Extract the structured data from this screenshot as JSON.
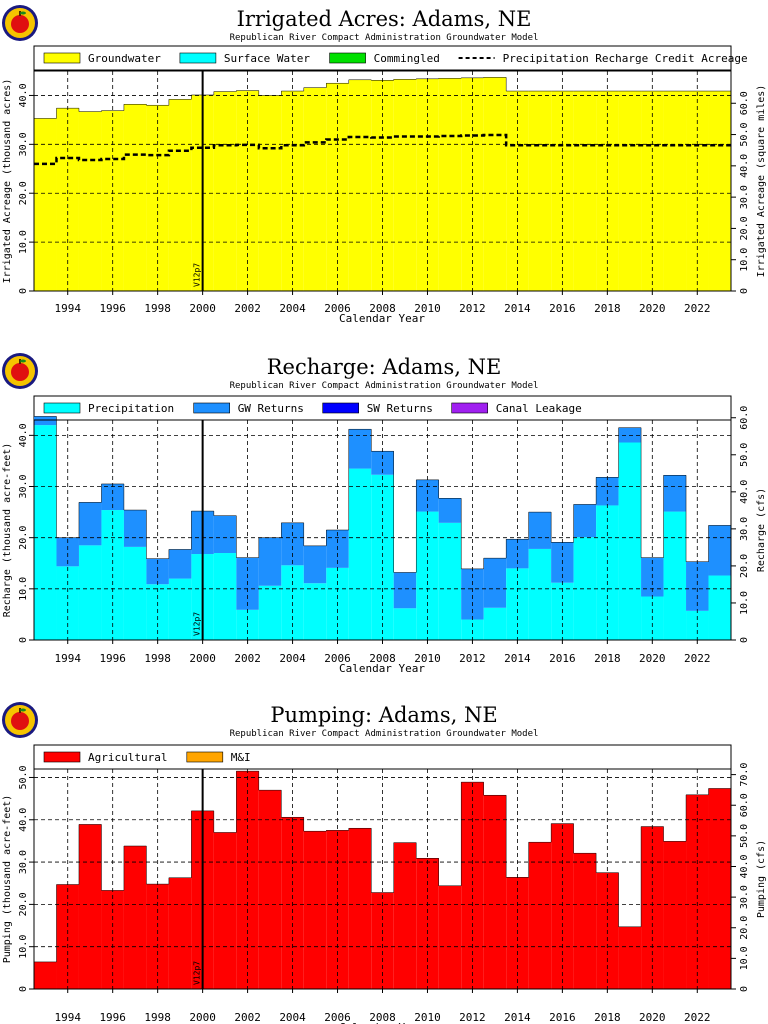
{
  "colors": {
    "groundwater": "#ffff00",
    "surface_water": "#00ffff",
    "commingled": "#00e000",
    "precipitation": "#00ffff",
    "gw_returns": "#1e90ff",
    "sw_returns": "#0000ff",
    "canal_leakage": "#a020f0",
    "agricultural": "#ff0000",
    "mi": "#ffa500",
    "logo_rim": "#1a1a80",
    "logo_fill": "#f5c400",
    "logo_apple": "#e01010"
  },
  "chart_data": [
    {
      "type": "bar",
      "title": "Irrigated Acres: Adams, NE",
      "subtitle": "Republican River Compact Administration Groundwater Model",
      "xlabel": "Calendar Year",
      "ylabel": "Irrigated Acreage (thousand acres)",
      "ylabel_right": "Irrigated Acreage (square miles)",
      "marker_label": "V12p7",
      "marker_year": 2000.5,
      "legend_placement": "top",
      "grid": true,
      "xlim": [
        1993,
        2024
      ],
      "ylim": [
        0,
        45
      ],
      "yticks": [
        0,
        10,
        20,
        30,
        40
      ],
      "ytick_labels": [
        "0",
        "10.0",
        "20.0",
        "30.0",
        "40.0"
      ],
      "ylim_right": [
        0,
        70.31
      ],
      "yticks_right": [
        0,
        10,
        20,
        30,
        40,
        50,
        60
      ],
      "ytick_labels_right": [
        "0",
        "10.0",
        "20.0",
        "30.0",
        "40.0",
        "50.0",
        "60.0"
      ],
      "x_ticks": [
        1994,
        1996,
        1998,
        2000,
        2002,
        2004,
        2006,
        2008,
        2010,
        2012,
        2014,
        2016,
        2018,
        2020,
        2022
      ],
      "x_tick_labels": [
        "1994",
        "1996",
        "1998",
        "2000",
        "2002",
        "2004",
        "2006",
        "2008",
        "2010",
        "2012",
        "2014",
        "2016",
        "2018",
        "2020",
        "2022"
      ],
      "x": [
        1993,
        1994,
        1995,
        1996,
        1997,
        1998,
        1999,
        2000,
        2001,
        2002,
        2003,
        2004,
        2005,
        2006,
        2007,
        2008,
        2009,
        2010,
        2011,
        2012,
        2013,
        2014,
        2015,
        2016,
        2017,
        2018,
        2019,
        2020,
        2021,
        2022,
        2023
      ],
      "series": [
        {
          "name": "Groundwater",
          "color": "#ffff00",
          "values": [
            35.3,
            37.4,
            36.7,
            36.9,
            38.2,
            38.0,
            39.2,
            40.1,
            40.8,
            41.0,
            40.0,
            40.9,
            41.6,
            42.5,
            43.2,
            43.1,
            43.3,
            43.4,
            43.5,
            43.6,
            43.7,
            40.9,
            40.9,
            40.9,
            40.9,
            40.9,
            40.9,
            40.9,
            40.9,
            40.9,
            40.9
          ]
        },
        {
          "name": "Surface Water",
          "color": "#00ffff",
          "values": [
            0,
            0,
            0,
            0,
            0,
            0,
            0,
            0,
            0,
            0,
            0,
            0,
            0,
            0,
            0,
            0,
            0,
            0,
            0,
            0,
            0,
            0,
            0,
            0,
            0,
            0,
            0,
            0,
            0,
            0,
            0
          ]
        },
        {
          "name": "Commingled",
          "color": "#00e000",
          "values": [
            0,
            0,
            0,
            0,
            0,
            0,
            0,
            0,
            0,
            0,
            0,
            0,
            0,
            0,
            0,
            0,
            0,
            0,
            0,
            0,
            0,
            0,
            0,
            0,
            0,
            0,
            0,
            0,
            0,
            0,
            0
          ]
        }
      ],
      "line_series": {
        "name": "Precipitation Recharge Credit Acreage",
        "style": "dashed",
        "values": [
          26.0,
          27.2,
          26.8,
          27.0,
          27.9,
          27.8,
          28.7,
          29.3,
          29.8,
          29.9,
          29.2,
          29.8,
          30.4,
          31.0,
          31.5,
          31.4,
          31.6,
          31.6,
          31.7,
          31.8,
          31.9,
          29.8,
          29.8,
          29.8,
          29.8,
          29.8,
          29.8,
          29.8,
          29.8,
          29.8,
          29.8
        ]
      }
    },
    {
      "type": "bar",
      "title": "Recharge: Adams, NE",
      "subtitle": "Republican River Compact Administration Groundwater Model",
      "xlabel": "Calendar Year",
      "ylabel": "Recharge (thousand acre-feet)",
      "ylabel_right": "Recharge (cfs)",
      "marker_label": "V12p7",
      "marker_year": 2000.5,
      "legend_placement": "top",
      "grid": true,
      "xlim": [
        1993,
        2024
      ],
      "ylim": [
        0,
        43
      ],
      "yticks": [
        0,
        10,
        20,
        30,
        40
      ],
      "ytick_labels": [
        "0",
        "10.0",
        "20.0",
        "30.0",
        "40.0"
      ],
      "ylim_right": [
        0,
        59.39
      ],
      "yticks_right": [
        0,
        10,
        20,
        30,
        40,
        50,
        60
      ],
      "ytick_labels_right": [
        "0",
        "10.0",
        "20.0",
        "30.0",
        "40.0",
        "50.0",
        "60.0"
      ],
      "x_ticks": [
        1994,
        1996,
        1998,
        2000,
        2002,
        2004,
        2006,
        2008,
        2010,
        2012,
        2014,
        2016,
        2018,
        2020,
        2022
      ],
      "x_tick_labels": [
        "1994",
        "1996",
        "1998",
        "2000",
        "2002",
        "2004",
        "2006",
        "2008",
        "2010",
        "2012",
        "2014",
        "2016",
        "2018",
        "2020",
        "2022"
      ],
      "x": [
        1993,
        1994,
        1995,
        1996,
        1997,
        1998,
        1999,
        2000,
        2001,
        2002,
        2003,
        2004,
        2005,
        2006,
        2007,
        2008,
        2009,
        2010,
        2011,
        2012,
        2013,
        2014,
        2015,
        2016,
        2017,
        2018,
        2019,
        2020,
        2021,
        2022,
        2023
      ],
      "series": [
        {
          "name": "Precipitation",
          "color": "#00ffff",
          "values": [
            42.0,
            14.4,
            18.5,
            25.4,
            18.2,
            10.9,
            12.0,
            16.8,
            17.0,
            5.9,
            10.6,
            14.6,
            11.1,
            14.1,
            33.5,
            32.3,
            6.2,
            25.1,
            22.9,
            4.0,
            6.3,
            14.0,
            17.8,
            11.2,
            20.1,
            26.3,
            38.6,
            8.5,
            25.1,
            5.7,
            12.6
          ]
        },
        {
          "name": "GW Returns",
          "color": "#1e90ff",
          "values": [
            1.7,
            5.6,
            8.4,
            5.1,
            7.2,
            5.0,
            5.7,
            8.4,
            7.3,
            10.2,
            9.4,
            8.3,
            7.3,
            7.4,
            7.7,
            4.6,
            7.0,
            6.2,
            4.8,
            9.9,
            9.7,
            5.7,
            7.2,
            7.9,
            6.4,
            5.5,
            2.9,
            7.6,
            7.1,
            9.6,
            9.8
          ]
        },
        {
          "name": "SW Returns",
          "color": "#0000ff",
          "values": [
            0,
            0,
            0,
            0,
            0,
            0,
            0,
            0,
            0,
            0,
            0,
            0,
            0,
            0,
            0,
            0,
            0,
            0,
            0,
            0,
            0,
            0,
            0,
            0,
            0,
            0,
            0,
            0,
            0,
            0,
            0
          ]
        },
        {
          "name": "Canal Leakage",
          "color": "#a020f0",
          "values": [
            0,
            0,
            0,
            0,
            0,
            0,
            0,
            0,
            0,
            0,
            0,
            0,
            0,
            0,
            0,
            0,
            0,
            0,
            0,
            0,
            0,
            0,
            0,
            0,
            0,
            0,
            0,
            0,
            0,
            0,
            0
          ]
        }
      ]
    },
    {
      "type": "bar",
      "title": "Pumping: Adams, NE",
      "subtitle": "Republican River Compact Administration Groundwater Model",
      "xlabel": "Calendar Year",
      "ylabel": "Pumping (thousand acre-feet)",
      "ylabel_right": "Pumping (cfs)",
      "marker_label": "V12p7",
      "marker_year": 2000.5,
      "legend_placement": "top",
      "grid": true,
      "xlim": [
        1993,
        2024
      ],
      "ylim": [
        0,
        52
      ],
      "yticks": [
        0,
        10,
        20,
        30,
        40,
        50
      ],
      "ytick_labels": [
        "0",
        "10.0",
        "20.0",
        "30.0",
        "40.0",
        "50.0"
      ],
      "ylim_right": [
        0,
        71.83
      ],
      "yticks_right": [
        0,
        10,
        20,
        30,
        40,
        50,
        60,
        70
      ],
      "ytick_labels_right": [
        "0",
        "10.0",
        "20.0",
        "30.0",
        "40.0",
        "50.0",
        "60.0",
        "70.0"
      ],
      "x_ticks": [
        1994,
        1996,
        1998,
        2000,
        2002,
        2004,
        2006,
        2008,
        2010,
        2012,
        2014,
        2016,
        2018,
        2020,
        2022
      ],
      "x_tick_labels": [
        "1994",
        "1996",
        "1998",
        "2000",
        "2002",
        "2004",
        "2006",
        "2008",
        "2010",
        "2012",
        "2014",
        "2016",
        "2018",
        "2020",
        "2022"
      ],
      "x": [
        1993,
        1994,
        1995,
        1996,
        1997,
        1998,
        1999,
        2000,
        2001,
        2002,
        2003,
        2004,
        2005,
        2006,
        2007,
        2008,
        2009,
        2010,
        2011,
        2012,
        2013,
        2014,
        2015,
        2016,
        2017,
        2018,
        2019,
        2020,
        2021,
        2022,
        2023
      ],
      "series": [
        {
          "name": "Agricultural",
          "color": "#ff0000",
          "values": [
            6.4,
            24.7,
            38.9,
            23.3,
            33.8,
            24.8,
            26.3,
            42.1,
            37.0,
            51.5,
            47.0,
            40.6,
            37.3,
            37.5,
            38.0,
            22.8,
            34.6,
            30.9,
            24.4,
            48.9,
            45.8,
            26.4,
            34.7,
            39.1,
            32.1,
            27.5,
            14.7,
            38.4,
            34.9,
            45.9,
            47.4
          ]
        },
        {
          "name": "M&I",
          "color": "#ffa500",
          "values": [
            0,
            0,
            0,
            0,
            0,
            0,
            0,
            0,
            0,
            0,
            0,
            0,
            0,
            0,
            0,
            0,
            0,
            0,
            0,
            0,
            0,
            0,
            0,
            0,
            0,
            0,
            0,
            0,
            0,
            0,
            0
          ]
        }
      ]
    }
  ]
}
